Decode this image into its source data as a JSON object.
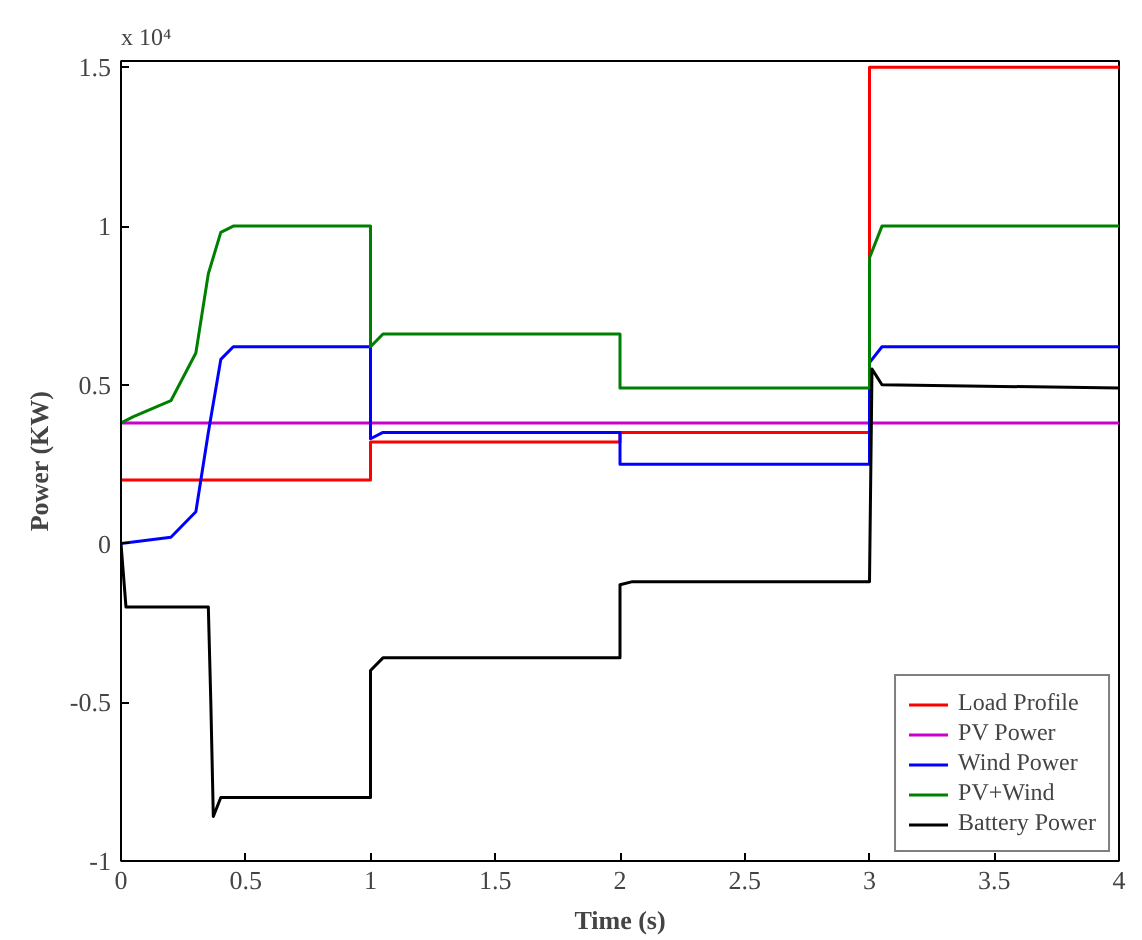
{
  "chart_data": {
    "type": "line",
    "xlabel": "Time (s)",
    "ylabel": "Power (KW)",
    "annotations": [
      "x 10⁴"
    ],
    "xlim": [
      0,
      4
    ],
    "xticks": [
      0,
      0.5,
      1,
      1.5,
      2,
      2.5,
      3,
      3.5,
      4
    ],
    "ylim": [
      -1,
      1.52
    ],
    "yticks": [
      -1,
      -0.5,
      0,
      0.5,
      1,
      1.5
    ],
    "grid": false,
    "legend": "bottom right",
    "marker": "none",
    "line_style": "solid",
    "series": [
      {
        "name": "Load Profile",
        "color": "#ff0000",
        "x": [
          0,
          1,
          1,
          2,
          2,
          3,
          3,
          4
        ],
        "values": [
          0.2,
          0.2,
          0.32,
          0.32,
          0.35,
          0.35,
          1.5,
          1.5
        ]
      },
      {
        "name": "PV Power",
        "color": "#cc00cc",
        "x": [
          0,
          4
        ],
        "values": [
          0.38,
          0.38
        ]
      },
      {
        "name": "Wind Power",
        "color": "#0000ff",
        "x": [
          0,
          0.2,
          0.3,
          0.35,
          0.4,
          0.45,
          1,
          1,
          1.05,
          2,
          2,
          3,
          3,
          3.05,
          4
        ],
        "values": [
          0,
          0.02,
          0.1,
          0.35,
          0.58,
          0.62,
          0.62,
          0.33,
          0.35,
          0.35,
          0.25,
          0.25,
          0.57,
          0.62,
          0.62
        ]
      },
      {
        "name": "PV+Wind",
        "color": "#008000",
        "x": [
          0,
          0.05,
          0.2,
          0.3,
          0.35,
          0.4,
          0.45,
          1,
          1,
          1.05,
          2,
          2,
          3,
          3,
          3.05,
          4
        ],
        "values": [
          0.38,
          0.4,
          0.45,
          0.6,
          0.85,
          0.98,
          1.0,
          1.0,
          0.62,
          0.66,
          0.66,
          0.49,
          0.49,
          0.9,
          1.0,
          1.0
        ]
      },
      {
        "name": "Battery Power",
        "color": "#000000",
        "x": [
          0,
          0.02,
          0.35,
          0.36,
          0.37,
          0.4,
          1,
          1,
          1.05,
          2,
          2,
          2.05,
          3,
          3.01,
          3.05,
          4
        ],
        "values": [
          0,
          -0.2,
          -0.2,
          -0.5,
          -0.86,
          -0.8,
          -0.8,
          -0.4,
          -0.36,
          -0.36,
          -0.13,
          -0.12,
          -0.12,
          0.55,
          0.5,
          0.49
        ]
      }
    ]
  }
}
